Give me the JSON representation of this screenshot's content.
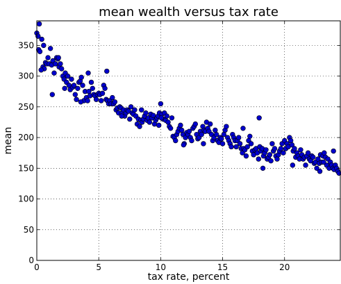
{
  "chart_data": {
    "type": "scatter",
    "title": "mean wealth versus tax rate",
    "xlabel": "tax rate, percent",
    "ylabel": "mean",
    "xlim": [
      0,
      24.5
    ],
    "ylim": [
      0,
      390
    ],
    "x_ticks": [
      0,
      5,
      10,
      15,
      20
    ],
    "y_ticks": [
      0,
      50,
      100,
      150,
      200,
      250,
      300,
      350
    ],
    "grid": true,
    "legend": "none",
    "marker_color": "#0000cc",
    "series": [
      {
        "x": [
          0.0,
          0.1,
          0.15,
          0.2,
          0.4,
          0.5,
          0.6,
          0.7,
          0.8,
          0.9,
          1.0,
          1.1,
          1.2,
          1.3,
          1.4,
          1.5,
          1.6,
          1.7,
          1.8,
          1.9,
          2.0,
          2.1,
          2.2,
          2.3,
          2.4,
          2.5,
          2.6,
          2.7,
          2.8,
          2.9,
          3.0,
          3.1,
          3.2,
          3.3,
          3.4,
          3.5,
          3.6,
          3.7,
          3.8,
          3.9,
          4.0,
          4.1,
          4.2,
          4.3,
          4.4,
          4.5,
          4.6,
          4.7,
          4.8,
          4.9,
          5.0,
          5.1,
          5.2,
          5.3,
          5.4,
          5.5,
          5.6,
          5.7,
          5.8,
          5.9,
          6.0,
          6.1,
          6.2,
          6.3,
          6.4,
          6.5,
          6.6,
          6.7,
          6.8,
          6.9,
          7.0,
          7.1,
          7.2,
          7.3,
          7.4,
          7.5,
          7.6,
          7.7,
          7.8,
          7.9,
          8.0,
          8.1,
          8.2,
          8.3,
          8.4,
          8.5,
          8.6,
          8.7,
          8.8,
          8.9,
          9.0,
          9.1,
          9.2,
          9.3,
          9.4,
          9.5,
          9.6,
          9.7,
          9.8,
          9.9,
          10.0,
          10.1,
          10.2,
          10.3,
          10.4,
          10.5,
          10.6,
          10.7,
          10.8,
          10.9,
          11.0,
          11.1,
          11.2,
          11.3,
          11.4,
          11.5,
          11.6,
          11.7,
          11.8,
          11.9,
          12.0,
          12.1,
          12.2,
          12.3,
          12.4,
          12.5,
          12.6,
          12.7,
          12.8,
          12.9,
          13.0,
          13.1,
          13.2,
          13.3,
          13.4,
          13.5,
          13.6,
          13.7,
          13.8,
          13.9,
          14.0,
          14.1,
          14.2,
          14.3,
          14.4,
          14.5,
          14.6,
          14.7,
          14.8,
          14.9,
          15.0,
          15.1,
          15.2,
          15.3,
          15.4,
          15.5,
          15.6,
          15.7,
          15.8,
          15.9,
          16.0,
          16.1,
          16.2,
          16.3,
          16.4,
          16.5,
          16.6,
          16.7,
          16.8,
          16.9,
          17.0,
          17.1,
          17.2,
          17.3,
          17.4,
          17.5,
          17.6,
          17.7,
          17.8,
          17.9,
          18.0,
          18.1,
          18.2,
          18.3,
          18.4,
          18.5,
          18.6,
          18.7,
          18.8,
          18.9,
          19.0,
          19.1,
          19.2,
          19.3,
          19.4,
          19.5,
          19.6,
          19.7,
          19.8,
          19.9,
          20.0,
          20.1,
          20.2,
          20.3,
          20.4,
          20.5,
          20.6,
          20.7,
          20.8,
          20.9,
          21.0,
          21.1,
          21.2,
          21.3,
          21.4,
          21.5,
          21.6,
          21.7,
          21.8,
          21.9,
          22.0,
          22.1,
          22.2,
          22.3,
          22.4,
          22.5,
          22.6,
          22.7,
          22.8,
          22.9,
          23.0,
          23.1,
          23.2,
          23.3,
          23.4,
          23.5,
          23.6,
          23.7,
          23.8,
          23.9,
          24.0,
          24.1,
          24.2,
          24.3,
          24.4,
          0.25,
          0.35,
          0.55,
          1.25,
          1.75,
          2.25,
          3.55,
          4.15,
          5.65,
          6.85,
          8.45,
          9.85,
          10.05,
          11.85,
          13.45,
          16.65,
          17.95,
          18.25,
          20.65,
          22.85,
          23.15,
          23.95
        ],
        "y": [
          370,
          365,
          343,
          385,
          360,
          315,
          312,
          322,
          320,
          330,
          320,
          345,
          318,
          325,
          305,
          320,
          330,
          328,
          315,
          320,
          312,
          300,
          295,
          305,
          290,
          300,
          285,
          278,
          295,
          282,
          285,
          270,
          262,
          280,
          290,
          292,
          298,
          285,
          260,
          275,
          265,
          260,
          275,
          268,
          290,
          280,
          270,
          268,
          262,
          270,
          272,
          270,
          260,
          272,
          285,
          280,
          262,
          260,
          255,
          260,
          255,
          265,
          255,
          258,
          245,
          248,
          240,
          250,
          248,
          240,
          245,
          235,
          240,
          245,
          243,
          230,
          250,
          240,
          238,
          245,
          235,
          222,
          230,
          218,
          228,
          225,
          230,
          235,
          240,
          228,
          232,
          225,
          238,
          232,
          236,
          222,
          228,
          232,
          235,
          240,
          255,
          238,
          230,
          240,
          228,
          235,
          225,
          218,
          215,
          232,
          202,
          200,
          195,
          205,
          210,
          215,
          220,
          212,
          205,
          190,
          200,
          208,
          205,
          210,
          200,
          195,
          215,
          218,
          222,
          205,
          198,
          200,
          210,
          205,
          218,
          212,
          210,
          225,
          215,
          210,
          222,
          205,
          195,
          200,
          212,
          205,
          195,
          192,
          200,
          198,
          190,
          205,
          212,
          218,
          200,
          195,
          190,
          185,
          205,
          200,
          195,
          185,
          195,
          200,
          190,
          182,
          175,
          182,
          180,
          170,
          185,
          195,
          202,
          190,
          178,
          172,
          180,
          182,
          175,
          165,
          185,
          178,
          182,
          170,
          175,
          180,
          165,
          168,
          172,
          162,
          190,
          178,
          182,
          170,
          165,
          172,
          178,
          182,
          190,
          175,
          195,
          182,
          190,
          185,
          200,
          195,
          188,
          178,
          182,
          168,
          175,
          170,
          165,
          180,
          172,
          165,
          168,
          155,
          170,
          175,
          165,
          162,
          170,
          168,
          158,
          160,
          150,
          165,
          158,
          172,
          160,
          170,
          175,
          168,
          155,
          165,
          150,
          160,
          155,
          150,
          148,
          155,
          150,
          145,
          142,
          340,
          310,
          350,
          270,
          330,
          280,
          258,
          305,
          308,
          235,
          245,
          220,
          232,
          188,
          190,
          215,
          232,
          150,
          155,
          145,
          160,
          178
        ]
      }
    ]
  }
}
